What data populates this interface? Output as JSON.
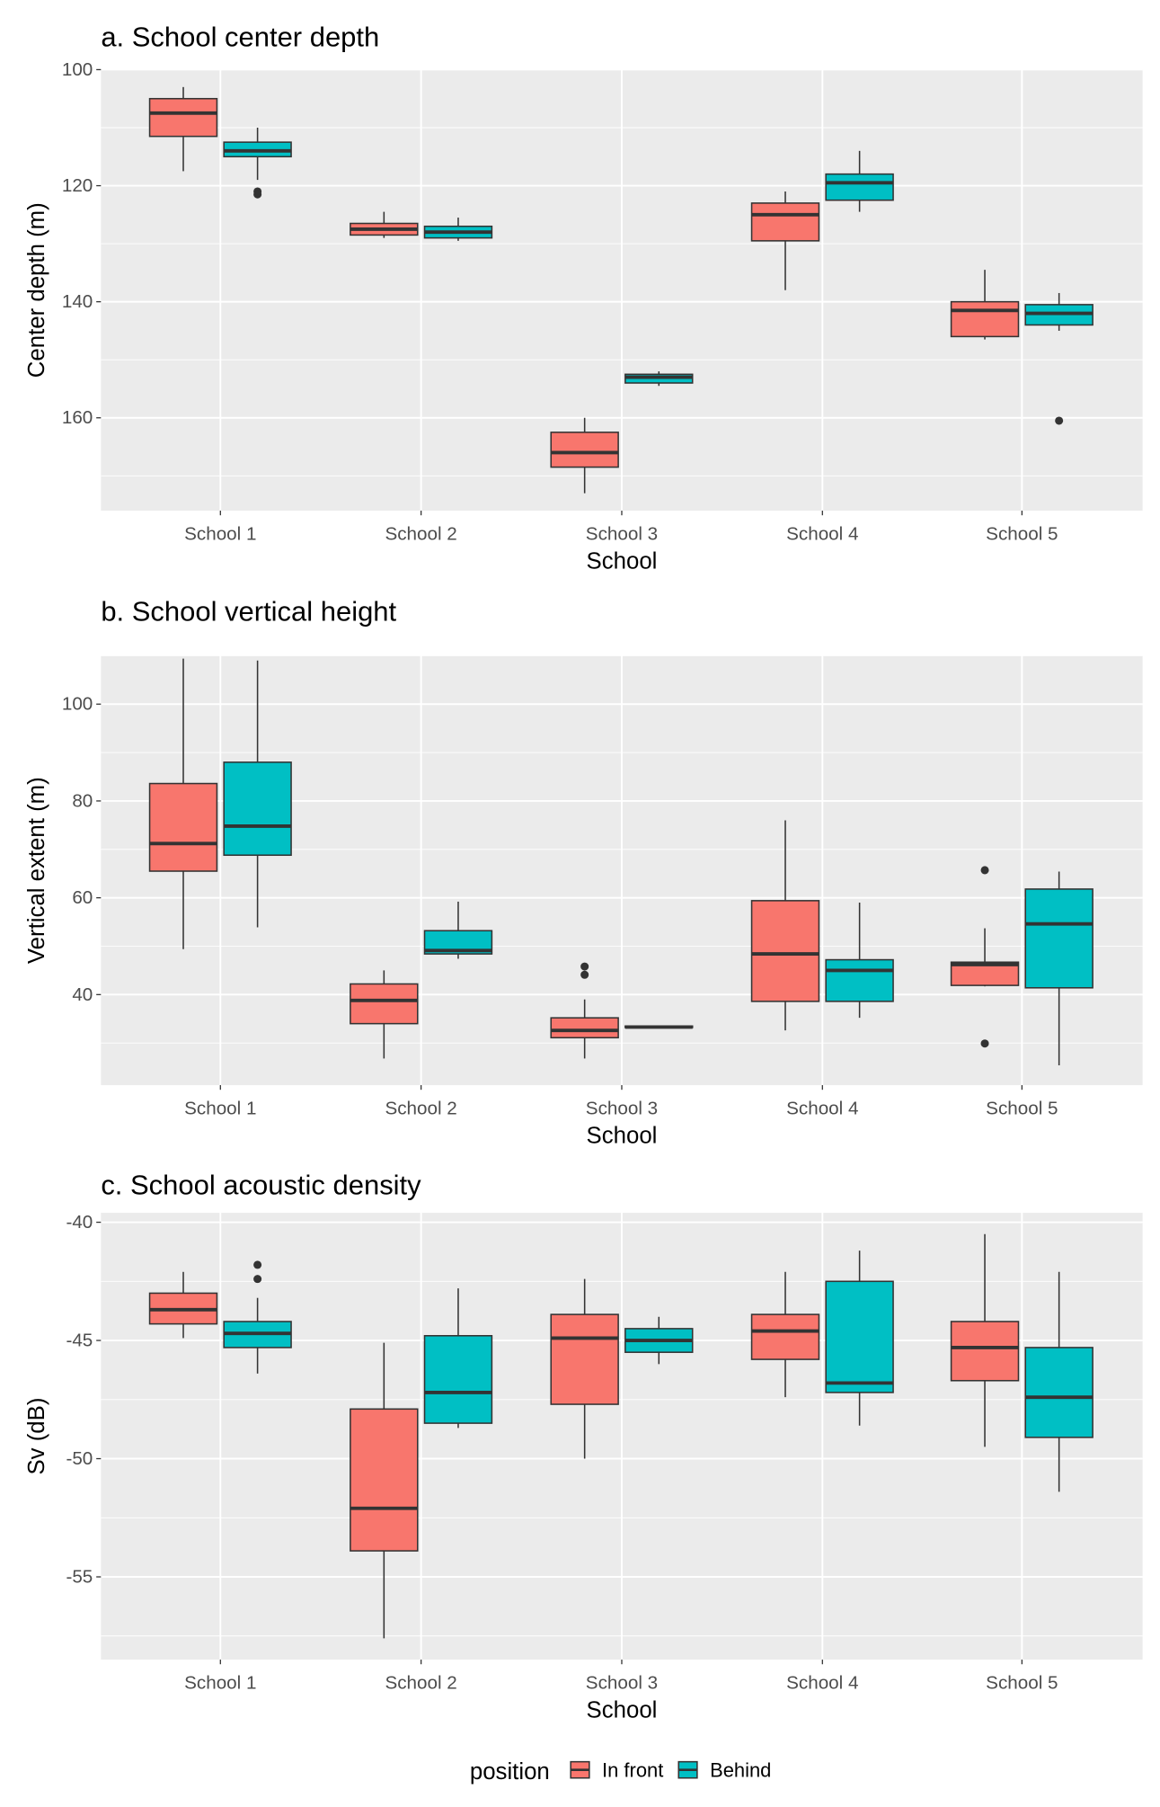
{
  "legend": {
    "title": "position",
    "items": [
      {
        "label": "In front",
        "color": "#F8766D"
      },
      {
        "label": "Behind",
        "color": "#00BFC4"
      }
    ],
    "placement": "bottom"
  },
  "chart_data": [
    {
      "type": "boxplot",
      "title": "a. School center depth",
      "xlabel": "School",
      "ylabel": "Center depth (m)",
      "categories": [
        "School 1",
        "School 2",
        "School 3",
        "School 4",
        "School 5"
      ],
      "y_reversed": true,
      "ylim": [
        100,
        176
      ],
      "yticks": [
        100,
        120,
        140,
        160
      ],
      "grid": true,
      "series": [
        {
          "name": "In front",
          "boxes": [
            {
              "lower_whisker": 103,
              "q1": 105,
              "median": 107.5,
              "q3": 111.5,
              "upper_whisker": 117.5,
              "outliers": []
            },
            {
              "lower_whisker": 124.5,
              "q1": 126.5,
              "median": 127.5,
              "q3": 128.5,
              "upper_whisker": 129,
              "outliers": []
            },
            {
              "lower_whisker": 160,
              "q1": 162.5,
              "median": 166,
              "q3": 168.5,
              "upper_whisker": 173,
              "outliers": []
            },
            {
              "lower_whisker": 121,
              "q1": 123,
              "median": 125,
              "q3": 129.5,
              "upper_whisker": 138,
              "outliers": []
            },
            {
              "lower_whisker": 134.5,
              "q1": 140,
              "median": 141.5,
              "q3": 146,
              "upper_whisker": 146.5,
              "outliers": []
            }
          ]
        },
        {
          "name": "Behind",
          "boxes": [
            {
              "lower_whisker": 110,
              "q1": 112.5,
              "median": 114,
              "q3": 115,
              "upper_whisker": 119,
              "outliers": [
                121,
                121.5
              ]
            },
            {
              "lower_whisker": 125.5,
              "q1": 127,
              "median": 128,
              "q3": 129,
              "upper_whisker": 129.5,
              "outliers": []
            },
            {
              "lower_whisker": 152,
              "q1": 152.5,
              "median": 153,
              "q3": 154,
              "upper_whisker": 154.5,
              "outliers": []
            },
            {
              "lower_whisker": 114,
              "q1": 118,
              "median": 119.5,
              "q3": 122.5,
              "upper_whisker": 124.5,
              "outliers": []
            },
            {
              "lower_whisker": 138.5,
              "q1": 140.5,
              "median": 142,
              "q3": 144,
              "upper_whisker": 145,
              "outliers": [
                160.5
              ]
            }
          ]
        }
      ]
    },
    {
      "type": "boxplot",
      "title": "b. School vertical height",
      "xlabel": "School",
      "ylabel": "Vertical extent (m)",
      "categories": [
        "School 1",
        "School 2",
        "School 3",
        "School 4",
        "School 5"
      ],
      "y_reversed": false,
      "ylim": [
        21.3,
        110
      ],
      "yticks": [
        40,
        60,
        80,
        100
      ],
      "grid": true,
      "series": [
        {
          "name": "In front",
          "boxes": [
            {
              "lower_whisker": 49.4,
              "q1": 65.5,
              "median": 71.2,
              "q3": 83.6,
              "upper_whisker": 109.4,
              "outliers": []
            },
            {
              "lower_whisker": 26.8,
              "q1": 34,
              "median": 38.8,
              "q3": 42.2,
              "upper_whisker": 45,
              "outliers": []
            },
            {
              "lower_whisker": 26.8,
              "q1": 31.1,
              "median": 32.6,
              "q3": 35.2,
              "upper_whisker": 39,
              "outliers": [
                44.1,
                45.8
              ]
            },
            {
              "lower_whisker": 32.6,
              "q1": 38.6,
              "median": 48.4,
              "q3": 59.4,
              "upper_whisker": 76,
              "outliers": []
            },
            {
              "lower_whisker": 41.7,
              "q1": 41.9,
              "median": 46.2,
              "q3": 46.7,
              "upper_whisker": 53.7,
              "outliers": [
                65.7,
                29.9
              ]
            }
          ]
        },
        {
          "name": "Behind",
          "boxes": [
            {
              "lower_whisker": 53.9,
              "q1": 68.8,
              "median": 74.8,
              "q3": 88,
              "upper_whisker": 109,
              "outliers": []
            },
            {
              "lower_whisker": 47.4,
              "q1": 48.4,
              "median": 49.1,
              "q3": 53.2,
              "upper_whisker": 59.2,
              "outliers": []
            },
            {
              "lower_whisker": 33.2,
              "q1": 33.2,
              "median": 33.3,
              "q3": 33.5,
              "upper_whisker": 33.5,
              "outliers": []
            },
            {
              "lower_whisker": 35.2,
              "q1": 38.6,
              "median": 45,
              "q3": 47.2,
              "upper_whisker": 59,
              "outliers": []
            },
            {
              "lower_whisker": 25.4,
              "q1": 41.4,
              "median": 54.6,
              "q3": 61.8,
              "upper_whisker": 65.4,
              "outliers": []
            }
          ]
        }
      ]
    },
    {
      "type": "boxplot",
      "title": "c. School acoustic density",
      "xlabel": "School",
      "ylabel": "Sv (dB)",
      "categories": [
        "School 1",
        "School 2",
        "School 3",
        "School 4",
        "School 5"
      ],
      "y_reversed": false,
      "ylim": [
        -58.5,
        -39.6
      ],
      "yticks": [
        -55,
        -50,
        -45,
        -40
      ],
      "grid": true,
      "series": [
        {
          "name": "In front",
          "boxes": [
            {
              "lower_whisker": -44.9,
              "q1": -44.3,
              "median": -43.7,
              "q3": -43.0,
              "upper_whisker": -42.1,
              "outliers": []
            },
            {
              "lower_whisker": -57.6,
              "q1": -53.9,
              "median": -52.1,
              "q3": -47.9,
              "upper_whisker": -45.1,
              "outliers": []
            },
            {
              "lower_whisker": -50.0,
              "q1": -47.7,
              "median": -44.9,
              "q3": -43.9,
              "upper_whisker": -42.4,
              "outliers": []
            },
            {
              "lower_whisker": -47.4,
              "q1": -45.8,
              "median": -44.6,
              "q3": -43.9,
              "upper_whisker": -42.1,
              "outliers": []
            },
            {
              "lower_whisker": -49.5,
              "q1": -46.7,
              "median": -45.3,
              "q3": -44.2,
              "upper_whisker": -40.5,
              "outliers": []
            }
          ]
        },
        {
          "name": "Behind",
          "boxes": [
            {
              "lower_whisker": -46.4,
              "q1": -45.3,
              "median": -44.7,
              "q3": -44.2,
              "upper_whisker": -43.2,
              "outliers": [
                -41.8,
                -42.4
              ]
            },
            {
              "lower_whisker": -48.7,
              "q1": -48.5,
              "median": -47.2,
              "q3": -44.8,
              "upper_whisker": -42.8,
              "outliers": []
            },
            {
              "lower_whisker": -46.0,
              "q1": -45.5,
              "median": -45.0,
              "q3": -44.5,
              "upper_whisker": -44.0,
              "outliers": []
            },
            {
              "lower_whisker": -48.6,
              "q1": -47.2,
              "median": -46.8,
              "q3": -42.5,
              "upper_whisker": -41.2,
              "outliers": []
            },
            {
              "lower_whisker": -51.4,
              "q1": -49.1,
              "median": -47.4,
              "q3": -45.3,
              "upper_whisker": -42.1,
              "outliers": []
            }
          ]
        }
      ]
    }
  ]
}
